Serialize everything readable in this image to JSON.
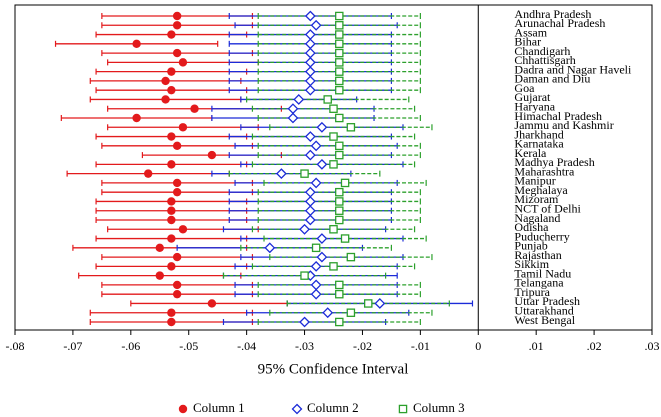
{
  "chart_data": {
    "type": "coefplot",
    "x_label": "95% Confidence Interval",
    "categories": [
      "Andhra Pradesh",
      "Arunachal Pradesh",
      "Assam",
      "Bihar",
      "Chandigarh",
      "Chhattisgarh",
      "Dadra and Nagar Haveli",
      "Daman and Diu",
      "Goa",
      "Gujarat",
      "Haryana",
      "Himachal Pradesh",
      "Jammu and Kashmir",
      "Jharkhand",
      "Karnataka",
      "Kerala",
      "Madhya Pradesh",
      "Maharashtra",
      "Manipur",
      "Meghalaya",
      "Mizoram",
      "NCT of Delhi",
      "Nagaland",
      "Odisha",
      "Puducherry",
      "Punjab",
      "Rajasthan",
      "Sikkim",
      "Tamil Nadu",
      "Telangana",
      "Tripura",
      "Uttar Pradesh",
      "Uttarakhand",
      "West Bengal"
    ],
    "xlim": [
      -0.08,
      0.03
    ],
    "xticks": [
      {
        "value": -0.08,
        "label": "-.08"
      },
      {
        "value": -0.07,
        "label": "-.07"
      },
      {
        "value": -0.06,
        "label": "-.06"
      },
      {
        "value": -0.05,
        "label": "-.05"
      },
      {
        "value": -0.04,
        "label": "-.04"
      },
      {
        "value": -0.03,
        "label": "-.03"
      },
      {
        "value": -0.02,
        "label": "-.02"
      },
      {
        "value": -0.01,
        "label": "-.01"
      },
      0,
      {
        "value": 0.01,
        "label": ".01"
      },
      {
        "value": 0.02,
        "label": ".02"
      },
      {
        "value": 0.03,
        "label": ".03"
      }
    ],
    "series": [
      {
        "name": "Column 1",
        "color": "#e31a1c",
        "marker": "circle",
        "dash": false,
        "values": [
          -0.052,
          -0.052,
          -0.053,
          -0.059,
          -0.052,
          -0.051,
          -0.053,
          -0.054,
          -0.053,
          -0.054,
          -0.049,
          -0.059,
          -0.051,
          -0.053,
          -0.052,
          -0.046,
          -0.053,
          -0.057,
          -0.052,
          -0.052,
          -0.053,
          -0.053,
          -0.053,
          -0.051,
          -0.053,
          -0.055,
          -0.052,
          -0.053,
          -0.055,
          -0.052,
          -0.052,
          -0.046,
          -0.053,
          -0.053
        ],
        "low": [
          -0.065,
          -0.065,
          -0.066,
          -0.073,
          -0.065,
          -0.064,
          -0.066,
          -0.067,
          -0.066,
          -0.067,
          -0.064,
          -0.072,
          -0.064,
          -0.066,
          -0.065,
          -0.058,
          -0.066,
          -0.071,
          -0.065,
          -0.065,
          -0.066,
          -0.066,
          -0.066,
          -0.064,
          -0.066,
          -0.07,
          -0.065,
          -0.066,
          -0.069,
          -0.065,
          -0.065,
          -0.06,
          -0.067,
          -0.067
        ],
        "high": [
          -0.039,
          -0.039,
          -0.04,
          -0.045,
          -0.039,
          -0.038,
          -0.04,
          -0.041,
          -0.04,
          -0.041,
          -0.034,
          -0.046,
          -0.038,
          -0.04,
          -0.039,
          -0.034,
          -0.04,
          -0.043,
          -0.039,
          -0.039,
          -0.04,
          -0.04,
          -0.04,
          -0.038,
          -0.04,
          -0.04,
          -0.039,
          -0.04,
          -0.041,
          -0.039,
          -0.039,
          -0.033,
          -0.039,
          -0.039
        ]
      },
      {
        "name": "Column 2",
        "color": "#1c2bd8",
        "marker": "diamond",
        "dash": false,
        "values": [
          -0.029,
          -0.028,
          -0.029,
          -0.029,
          -0.029,
          -0.029,
          -0.029,
          -0.029,
          -0.029,
          -0.031,
          -0.032,
          -0.032,
          -0.027,
          -0.029,
          -0.028,
          -0.029,
          -0.027,
          -0.034,
          -0.028,
          -0.029,
          -0.029,
          -0.029,
          -0.029,
          -0.03,
          -0.027,
          -0.036,
          -0.027,
          -0.028,
          -0.029,
          -0.028,
          -0.028,
          -0.017,
          -0.026,
          -0.03
        ],
        "low": [
          -0.043,
          -0.042,
          -0.043,
          -0.043,
          -0.043,
          -0.043,
          -0.043,
          -0.043,
          -0.043,
          -0.041,
          -0.046,
          -0.046,
          -0.041,
          -0.043,
          -0.042,
          -0.043,
          -0.041,
          -0.046,
          -0.042,
          -0.043,
          -0.043,
          -0.043,
          -0.043,
          -0.044,
          -0.041,
          -0.052,
          -0.041,
          -0.042,
          -0.044,
          -0.042,
          -0.042,
          -0.033,
          -0.04,
          -0.044
        ],
        "high": [
          -0.015,
          -0.014,
          -0.015,
          -0.015,
          -0.015,
          -0.015,
          -0.015,
          -0.015,
          -0.015,
          -0.021,
          -0.018,
          -0.018,
          -0.013,
          -0.015,
          -0.014,
          -0.015,
          -0.013,
          -0.022,
          -0.014,
          -0.015,
          -0.015,
          -0.015,
          -0.015,
          -0.016,
          -0.013,
          -0.02,
          -0.013,
          -0.014,
          -0.014,
          -0.014,
          -0.014,
          -0.001,
          -0.012,
          -0.016
        ]
      },
      {
        "name": "Column 3",
        "color": "#2ca02c",
        "marker": "square",
        "dash": true,
        "values": [
          -0.024,
          -0.024,
          -0.024,
          -0.024,
          -0.024,
          -0.024,
          -0.024,
          -0.024,
          -0.024,
          -0.026,
          -0.025,
          -0.024,
          -0.022,
          -0.025,
          -0.024,
          -0.024,
          -0.025,
          -0.03,
          -0.023,
          -0.024,
          -0.024,
          -0.024,
          -0.024,
          -0.025,
          -0.023,
          -0.028,
          -0.022,
          -0.025,
          -0.03,
          -0.024,
          -0.024,
          -0.019,
          -0.022,
          -0.024
        ],
        "low": [
          -0.038,
          -0.038,
          -0.038,
          -0.038,
          -0.038,
          -0.038,
          -0.038,
          -0.038,
          -0.038,
          -0.04,
          -0.039,
          -0.038,
          -0.036,
          -0.039,
          -0.038,
          -0.038,
          -0.039,
          -0.043,
          -0.037,
          -0.038,
          -0.038,
          -0.038,
          -0.038,
          -0.039,
          -0.037,
          -0.041,
          -0.036,
          -0.039,
          -0.044,
          -0.038,
          -0.038,
          -0.033,
          -0.036,
          -0.038
        ],
        "high": [
          -0.01,
          -0.01,
          -0.01,
          -0.01,
          -0.01,
          -0.01,
          -0.01,
          -0.01,
          -0.01,
          -0.012,
          -0.011,
          -0.01,
          -0.008,
          -0.011,
          -0.01,
          -0.01,
          -0.011,
          -0.017,
          -0.009,
          -0.01,
          -0.01,
          -0.01,
          -0.01,
          -0.011,
          -0.009,
          -0.015,
          -0.008,
          -0.011,
          -0.016,
          -0.01,
          -0.01,
          -0.005,
          -0.008,
          -0.01
        ]
      }
    ]
  }
}
